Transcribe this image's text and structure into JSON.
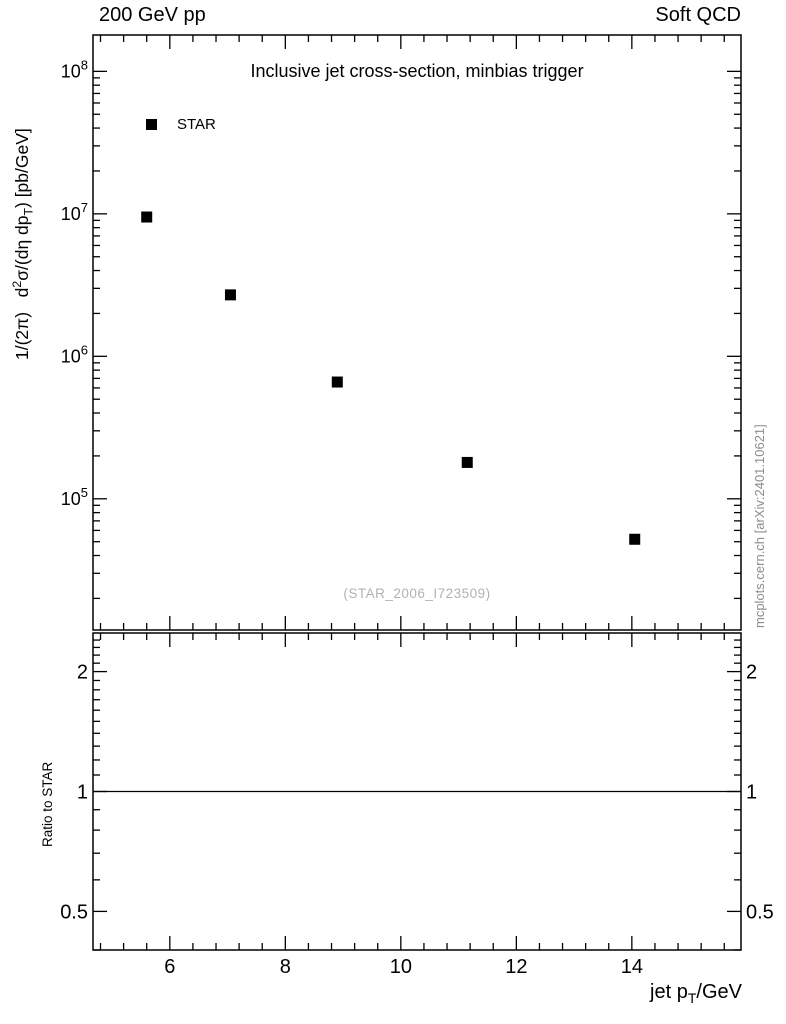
{
  "header": {
    "left": "200 GeV pp",
    "right": "Soft QCD"
  },
  "plot": {
    "watermark": "(STAR_2006_I723509)",
    "side_credit": "mcplots.cern.ch [arXiv:2401.10621]"
  },
  "labels": {
    "ylabel_parts": [
      {
        "t": "1/(2π)   d"
      },
      {
        "t": "2",
        "style": "sup"
      },
      {
        "t": "σ/(dη dp"
      },
      {
        "t": "T",
        "style": "sub"
      },
      {
        "t": ") [pb/GeV]"
      }
    ],
    "xlabel_parts": [
      {
        "t": "jet p"
      },
      {
        "t": "T",
        "style": "sub"
      },
      {
        "t": "/GeV"
      }
    ]
  },
  "chart_data": {
    "type": "scatter",
    "title": "Inclusive jet cross-section, minbias trigger",
    "xlabel": "jet p_T/GeV",
    "ylabel": "1/(2π) d^2σ/(dη dp_T) [pb/GeV]",
    "xscale": "linear",
    "yscale": "log",
    "xlim": [
      4.67,
      15.89
    ],
    "ylim": [
      12000,
      180000000
    ],
    "xticks": [
      6,
      8,
      10,
      12,
      14
    ],
    "x_minor_step": 0.4,
    "ytick_exponents": [
      5,
      6,
      7,
      8
    ],
    "grid": false,
    "legend_position": "top-left-inside",
    "marker_color": "#000000",
    "series": [
      {
        "name": "STAR",
        "marker": "filled-square",
        "color": "#000000",
        "x": [
          5.6,
          7.05,
          8.9,
          11.15,
          14.05
        ],
        "y": [
          9500000,
          2700000,
          660000,
          180000,
          52000
        ]
      }
    ],
    "ratio_panel": {
      "ylabel": "Ratio to STAR",
      "yscale": "log",
      "ylim": [
        0.4,
        2.5
      ],
      "yticks": [
        0.5,
        1,
        2
      ],
      "ytick_labels": [
        "0.5",
        "1",
        "2"
      ],
      "y_minor_step": 0.1,
      "reference_line_y": 1
    }
  }
}
